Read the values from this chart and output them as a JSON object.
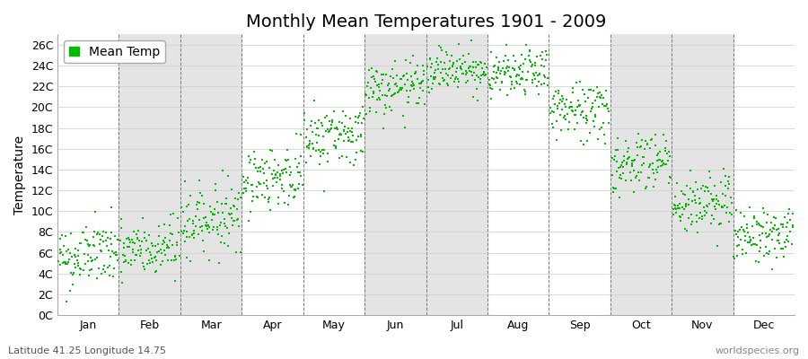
{
  "title": "Monthly Mean Temperatures 1901 - 2009",
  "ylabel": "Temperature",
  "bottom_left_text": "Latitude 41.25 Longitude 14.75",
  "bottom_right_text": "worldspecies.org",
  "legend_label": "Mean Temp",
  "dot_color": "#00bb00",
  "dot_size": 3,
  "bg_color": "#ffffff",
  "stripe_color": "#e4e4e4",
  "ylim": [
    0,
    27
  ],
  "ytick_labels": [
    "0C",
    "2C",
    "4C",
    "6C",
    "8C",
    "10C",
    "12C",
    "14C",
    "16C",
    "18C",
    "20C",
    "22C",
    "24C",
    "26C"
  ],
  "ytick_values": [
    0,
    2,
    4,
    6,
    8,
    10,
    12,
    14,
    16,
    18,
    20,
    22,
    24,
    26
  ],
  "months": [
    "Jan",
    "Feb",
    "Mar",
    "Apr",
    "May",
    "Jun",
    "Jul",
    "Aug",
    "Sep",
    "Oct",
    "Nov",
    "Dec"
  ],
  "monthly_means": [
    5.5,
    6.0,
    9.0,
    13.0,
    17.0,
    21.5,
    23.5,
    23.0,
    19.5,
    14.5,
    10.5,
    7.5
  ],
  "monthly_stds": [
    1.6,
    1.5,
    1.6,
    1.5,
    1.5,
    1.3,
    1.1,
    1.1,
    1.5,
    1.5,
    1.5,
    1.3
  ],
  "monthly_trend": [
    0.005,
    0.005,
    0.006,
    0.005,
    0.005,
    0.004,
    0.003,
    0.003,
    0.004,
    0.005,
    0.005,
    0.004
  ],
  "n_years": 109,
  "seed": 42,
  "title_fontsize": 14,
  "axis_fontsize": 10,
  "tick_fontsize": 9,
  "small_fontsize": 8,
  "stripe_months": [
    1,
    2,
    5,
    6,
    9,
    10
  ]
}
